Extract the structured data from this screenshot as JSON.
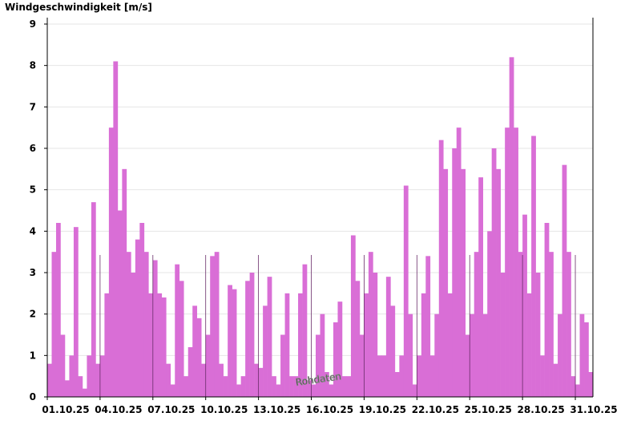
{
  "chart_data": {
    "type": "bar",
    "title": "Windgeschwindigkeit [m/s]",
    "watermark": "Rohdaten",
    "color": "#d96ed6",
    "x": [
      0,
      0.25,
      0.5,
      0.75,
      1,
      1.25,
      1.5,
      1.75,
      2,
      2.25,
      2.5,
      2.75,
      3,
      3.25,
      3.5,
      3.75,
      4,
      4.25,
      4.5,
      4.75,
      5,
      5.25,
      5.5,
      5.75,
      6,
      6.25,
      6.5,
      6.75,
      7,
      7.25,
      7.5,
      7.75,
      8,
      8.25,
      8.5,
      8.75,
      9,
      9.25,
      9.5,
      9.75,
      10,
      10.25,
      10.5,
      10.75,
      11,
      11.25,
      11.5,
      11.75,
      12,
      12.25,
      12.5,
      12.75,
      13,
      13.25,
      13.5,
      13.75,
      14,
      14.25,
      14.5,
      14.75,
      15,
      15.25,
      15.5,
      15.75,
      16,
      16.25,
      16.5,
      16.75,
      17,
      17.25,
      17.5,
      17.75,
      18,
      18.25,
      18.5,
      18.75,
      19,
      19.25,
      19.5,
      19.75,
      20,
      20.25,
      20.5,
      20.75,
      21,
      21.25,
      21.5,
      21.75,
      22,
      22.25,
      22.5,
      22.75,
      23,
      23.25,
      23.5,
      23.75,
      24,
      24.25,
      24.5,
      24.75,
      25,
      25.25,
      25.5,
      25.75,
      26,
      26.25,
      26.5,
      26.75,
      27,
      27.25,
      27.5,
      27.75,
      28,
      28.25,
      28.5,
      28.75,
      29,
      29.25,
      29.5,
      29.75,
      30,
      30.25,
      30.5,
      30.75
    ],
    "values": [
      0.8,
      3.5,
      4.2,
      1.5,
      0.4,
      1.0,
      4.1,
      0.5,
      0.2,
      1.0,
      4.7,
      0.8,
      1.0,
      2.5,
      6.5,
      8.1,
      4.5,
      5.5,
      3.5,
      3.0,
      3.8,
      4.2,
      3.5,
      2.5,
      3.3,
      2.5,
      2.4,
      0.8,
      0.3,
      3.2,
      2.8,
      0.5,
      1.2,
      2.2,
      1.9,
      0.8,
      1.5,
      3.4,
      3.5,
      0.8,
      0.5,
      2.7,
      2.6,
      0.3,
      0.5,
      2.8,
      3.0,
      0.8,
      0.7,
      2.2,
      2.9,
      0.5,
      0.3,
      1.5,
      2.5,
      0.5,
      0.5,
      2.5,
      3.2,
      0.4,
      0.3,
      1.5,
      2.0,
      0.6,
      0.3,
      1.8,
      2.3,
      0.5,
      0.5,
      3.9,
      2.8,
      1.5,
      2.5,
      3.5,
      3.0,
      1.0,
      1.0,
      2.9,
      2.2,
      0.6,
      1.0,
      5.1,
      2.0,
      0.3,
      1.0,
      2.5,
      3.4,
      1.0,
      2.0,
      6.2,
      5.5,
      2.5,
      6.0,
      6.5,
      5.5,
      1.5,
      2.0,
      3.5,
      5.3,
      2.0,
      4.0,
      6.0,
      5.5,
      3.0,
      6.5,
      8.2,
      6.5,
      3.5,
      4.4,
      2.5,
      6.3,
      3.0,
      1.0,
      4.2,
      3.5,
      0.8,
      2.0,
      5.6,
      3.5,
      0.5,
      0.3,
      2.0,
      1.8,
      0.6
    ],
    "xlim": [
      0,
      31
    ],
    "xticks": [
      {
        "value": 0,
        "label": "01.10.25"
      },
      {
        "value": 3,
        "label": "04.10.25"
      },
      {
        "value": 6,
        "label": "07.10.25"
      },
      {
        "value": 9,
        "label": "10.10.25"
      },
      {
        "value": 12,
        "label": "13.10.25"
      },
      {
        "value": 15,
        "label": "16.10.25"
      },
      {
        "value": 18,
        "label": "19.10.25"
      },
      {
        "value": 21,
        "label": "22.10.25"
      },
      {
        "value": 24,
        "label": "25.10.25"
      },
      {
        "value": 27,
        "label": "28.10.25"
      },
      {
        "value": 30,
        "label": "31.10.25"
      }
    ],
    "ylim": [
      0,
      9
    ],
    "yticks": [
      0,
      1,
      2,
      3,
      4,
      5,
      6,
      7,
      8,
      9
    ],
    "grid": true
  }
}
